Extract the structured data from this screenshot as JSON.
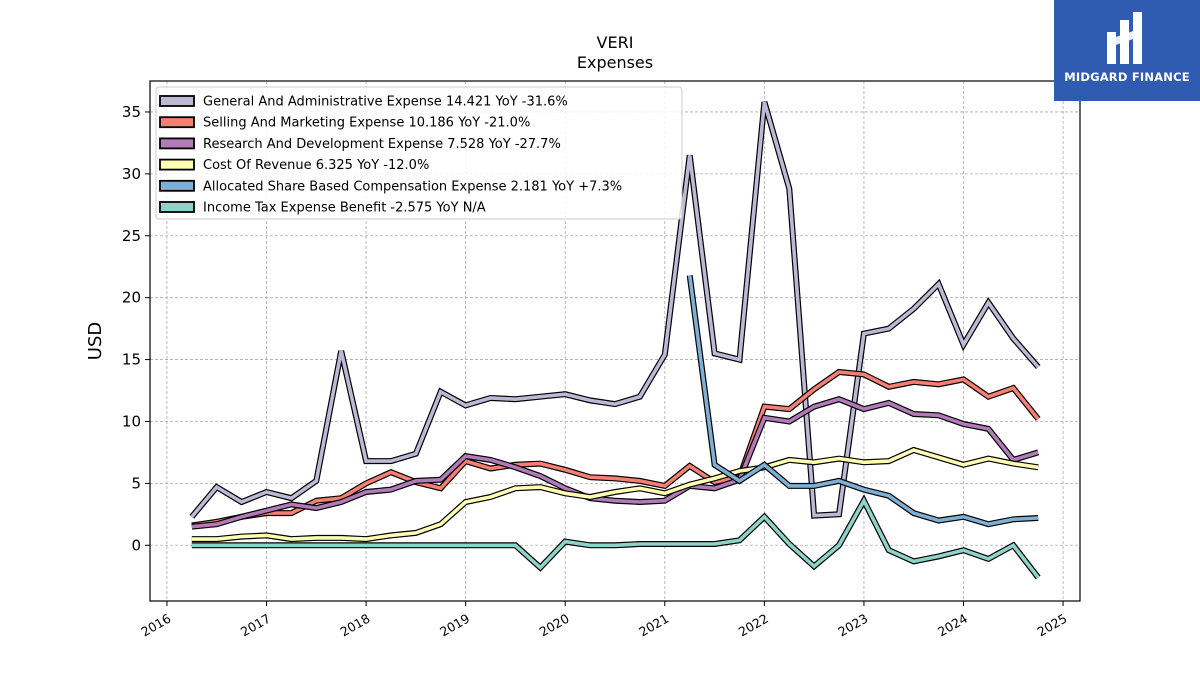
{
  "chart_data": {
    "type": "line",
    "title": "VERI",
    "subtitle": "Expenses",
    "ylabel": "USD",
    "xlabel": "",
    "xlim": [
      2015.83,
      2025.17
    ],
    "ylim": [
      -4.5,
      37.5
    ],
    "yticks": [
      0,
      5,
      10,
      15,
      20,
      25,
      30,
      35
    ],
    "xticks": [
      "2016",
      "2017",
      "2018",
      "2019",
      "2020",
      "2021",
      "2022",
      "2023",
      "2024",
      "2025"
    ],
    "grid": true,
    "legend_position": "top-left",
    "series": [
      {
        "name": "General And Administrative Expense  14.421 YoY -31.6%",
        "color": "#bcb8d6",
        "x": [
          2016.25,
          2016.5,
          2016.75,
          2017.0,
          2017.25,
          2017.5,
          2017.75,
          2018.0,
          2018.25,
          2018.5,
          2018.75,
          2019.0,
          2019.25,
          2019.5,
          2019.75,
          2020.0,
          2020.25,
          2020.5,
          2020.75,
          2021.0,
          2021.25,
          2021.5,
          2021.75,
          2022.0,
          2022.25,
          2022.5,
          2022.75,
          2023.0,
          2023.25,
          2023.5,
          2023.75,
          2024.0,
          2024.25,
          2024.5,
          2024.75
        ],
        "values": [
          2.3,
          4.7,
          3.5,
          4.3,
          3.8,
          5.2,
          15.7,
          6.8,
          6.8,
          7.4,
          12.4,
          11.3,
          11.9,
          11.8,
          12.0,
          12.2,
          11.7,
          11.4,
          12.0,
          15.4,
          31.5,
          15.5,
          15.0,
          35.8,
          28.8,
          2.4,
          2.5,
          17.1,
          17.5,
          19.1,
          21.1,
          16.2,
          19.6,
          16.7,
          14.4
        ]
      },
      {
        "name": "Selling And Marketing Expense  10.186 YoY -21.0%",
        "color": "#f47f72",
        "x": [
          2016.25,
          2016.5,
          2016.75,
          2017.0,
          2017.25,
          2017.5,
          2017.75,
          2018.0,
          2018.25,
          2018.5,
          2018.75,
          2019.0,
          2019.25,
          2019.5,
          2019.75,
          2020.0,
          2020.25,
          2020.5,
          2020.75,
          2021.0,
          2021.25,
          2021.5,
          2021.75,
          2022.0,
          2022.25,
          2022.5,
          2022.75,
          2023.0,
          2023.25,
          2023.5,
          2023.75,
          2024.0,
          2024.25,
          2024.5,
          2024.75
        ],
        "values": [
          1.6,
          1.9,
          2.3,
          2.6,
          2.6,
          3.6,
          3.8,
          5.0,
          5.9,
          5.1,
          4.6,
          6.8,
          6.2,
          6.5,
          6.6,
          6.1,
          5.5,
          5.4,
          5.2,
          4.8,
          6.4,
          5.1,
          5.5,
          11.2,
          11.0,
          12.6,
          14.0,
          13.8,
          12.8,
          13.2,
          13.0,
          13.4,
          12.0,
          12.7,
          10.2
        ]
      },
      {
        "name": "Research And Development Expense  7.528 YoY -27.7%",
        "color": "#b27ab8",
        "x": [
          2016.25,
          2016.5,
          2016.75,
          2017.0,
          2017.25,
          2017.5,
          2017.75,
          2018.0,
          2018.25,
          2018.5,
          2018.75,
          2019.0,
          2019.25,
          2019.5,
          2019.75,
          2020.0,
          2020.25,
          2020.5,
          2020.75,
          2021.0,
          2021.25,
          2021.5,
          2021.75,
          2022.0,
          2022.25,
          2022.5,
          2022.75,
          2023.0,
          2023.25,
          2023.5,
          2023.75,
          2024.0,
          2024.25,
          2024.5,
          2024.75
        ],
        "values": [
          1.5,
          1.7,
          2.3,
          2.8,
          3.3,
          3.0,
          3.5,
          4.3,
          4.5,
          5.2,
          5.3,
          7.2,
          6.9,
          6.3,
          5.6,
          4.6,
          3.8,
          3.6,
          3.5,
          3.6,
          4.8,
          4.6,
          5.3,
          10.3,
          10.0,
          11.2,
          11.8,
          11.0,
          11.5,
          10.6,
          10.5,
          9.8,
          9.4,
          6.9,
          7.5
        ]
      },
      {
        "name": "Cost Of Revenue  6.325 YoY -12.0%",
        "color": "#ffffb3",
        "x": [
          2016.25,
          2016.5,
          2016.75,
          2017.0,
          2017.25,
          2017.5,
          2017.75,
          2018.0,
          2018.25,
          2018.5,
          2018.75,
          2019.0,
          2019.25,
          2019.5,
          2019.75,
          2020.0,
          2020.25,
          2020.5,
          2020.75,
          2021.0,
          2021.25,
          2021.5,
          2021.75,
          2022.0,
          2022.25,
          2022.5,
          2022.75,
          2023.0,
          2023.25,
          2023.5,
          2023.75,
          2024.0,
          2024.25,
          2024.5,
          2024.75
        ],
        "values": [
          0.5,
          0.5,
          0.7,
          0.8,
          0.5,
          0.6,
          0.6,
          0.5,
          0.8,
          1.0,
          1.7,
          3.5,
          3.9,
          4.6,
          4.7,
          4.2,
          3.9,
          4.3,
          4.6,
          4.2,
          4.9,
          5.4,
          6.0,
          6.3,
          6.9,
          6.7,
          7.0,
          6.7,
          6.8,
          7.7,
          7.1,
          6.5,
          7.0,
          6.6,
          6.3
        ]
      },
      {
        "name": "Allocated Share Based Compensation Expense  2.181 YoY +7.3%",
        "color": "#7eb0d5",
        "x": [
          2021.25,
          2021.5,
          2021.75,
          2022.0,
          2022.25,
          2022.5,
          2022.75,
          2023.0,
          2023.25,
          2023.5,
          2023.75,
          2024.0,
          2024.25,
          2024.5,
          2024.75
        ],
        "values": [
          21.8,
          6.5,
          5.2,
          6.5,
          4.8,
          4.8,
          5.2,
          4.5,
          4.0,
          2.6,
          2.0,
          2.3,
          1.7,
          2.1,
          2.2
        ]
      },
      {
        "name": "Income Tax Expense Benefit  -2.575 YoY N/A",
        "color": "#8dd3c7",
        "x": [
          2016.25,
          2016.5,
          2016.75,
          2017.0,
          2017.25,
          2017.5,
          2017.75,
          2018.0,
          2018.25,
          2018.5,
          2018.75,
          2019.0,
          2019.25,
          2019.5,
          2019.75,
          2020.0,
          2020.25,
          2020.5,
          2020.75,
          2021.0,
          2021.25,
          2021.5,
          2021.75,
          2022.0,
          2022.25,
          2022.5,
          2022.75,
          2023.0,
          2023.25,
          2023.5,
          2023.75,
          2024.0,
          2024.25,
          2024.5,
          2024.75
        ],
        "values": [
          0.0,
          0.0,
          0.0,
          0.0,
          0.0,
          0.0,
          0.0,
          0.0,
          0.0,
          0.0,
          0.0,
          0.0,
          0.0,
          0.0,
          -1.8,
          0.3,
          0.0,
          0.0,
          0.1,
          0.1,
          0.1,
          0.1,
          0.4,
          2.3,
          0.1,
          -1.7,
          0.0,
          3.6,
          -0.4,
          -1.3,
          -0.9,
          -0.4,
          -1.1,
          0.0,
          -2.6
        ]
      }
    ]
  },
  "logo": {
    "text": "MIDGARD FINANCE",
    "color": "#2f5bb0"
  }
}
